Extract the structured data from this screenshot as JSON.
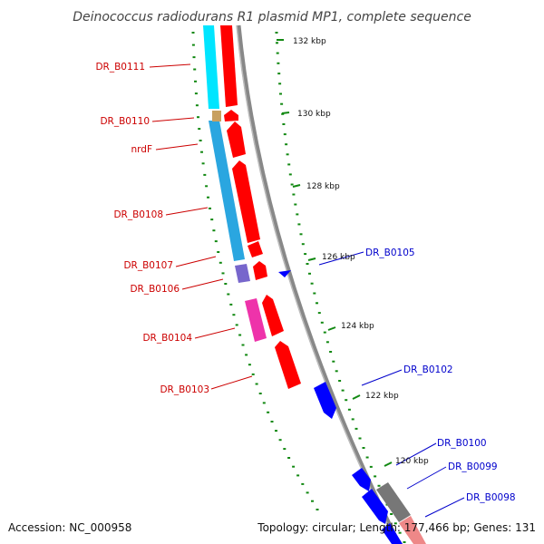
{
  "title": "Deinococcus radiodurans R1 plasmid MP1, complete sequence",
  "footer": {
    "accession": "Accession: NC_000958",
    "summary": "Topology: circular; Length: 177,466 bp; Genes: 131"
  },
  "scale_labels": [
    "132 kbp",
    "130 kbp",
    "128 kbp",
    "126 kbp",
    "124 kbp",
    "122 kbp",
    "120 kbp"
  ],
  "genes_reverse": [
    "DR_B0111",
    "DR_B0110",
    "nrdF",
    "DR_B0108",
    "DR_B0107",
    "DR_B0106",
    "DR_B0104",
    "DR_B0103"
  ],
  "genes_forward": [
    "DR_B0105",
    "DR_B0102",
    "DR_B0100",
    "DR_B0099",
    "DR_B0098"
  ],
  "colors": {
    "reverse_strand": "#ff0000",
    "forward_strand": "#0000ff",
    "cog_cyan": "#00e5ff",
    "cog_blue": "#2aa6e0",
    "cog_purple": "#7766cc",
    "cog_magenta": "#ee33aa",
    "backbone": "#888888",
    "tick": "#118811"
  }
}
